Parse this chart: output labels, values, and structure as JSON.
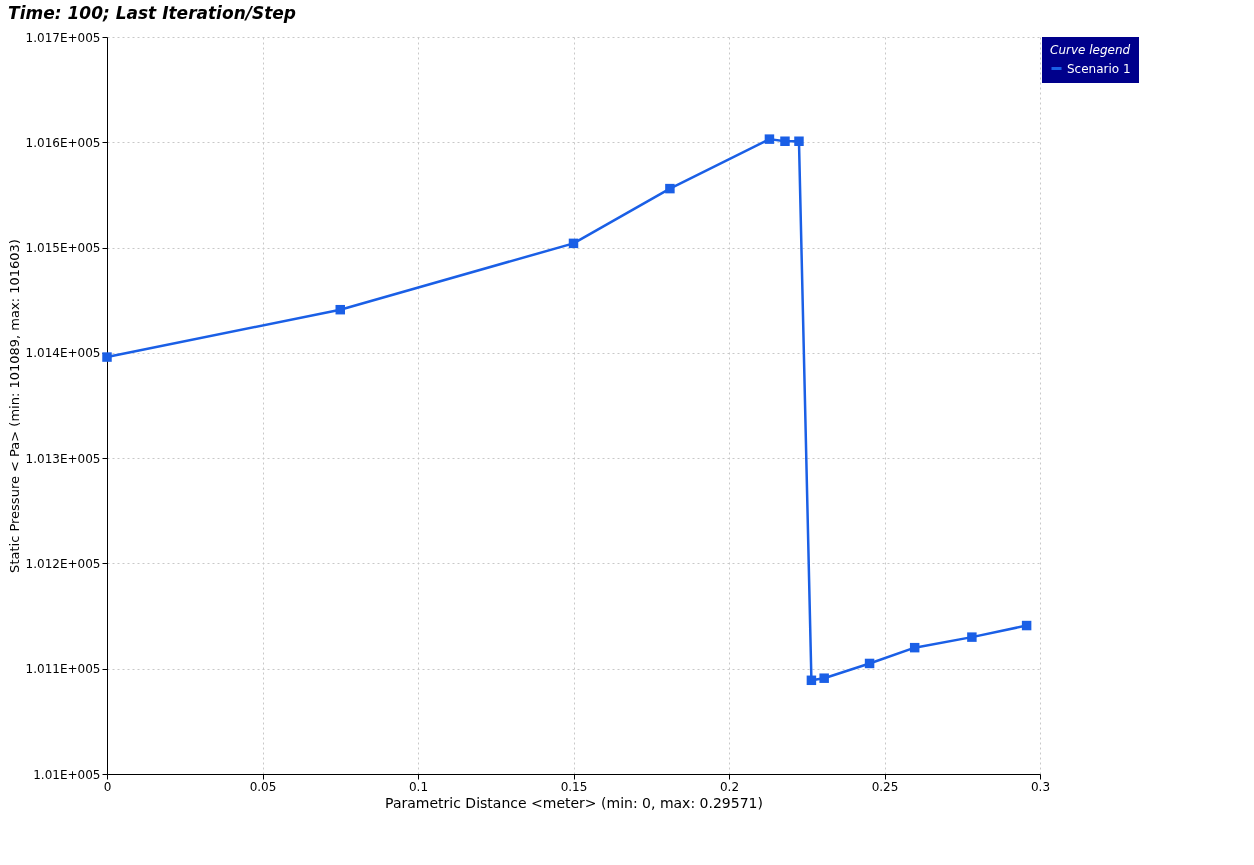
{
  "chart_data": {
    "type": "line",
    "title": "Time: 100; Last Iteration/Step",
    "xlabel": "Parametric Distance <meter> (min: 0, max: 0.29571)",
    "ylabel": "Static Pressure < Pa> (min: 101089, max: 101603)",
    "legend_title": "Curve legend",
    "x": [
      0,
      0.075,
      0.15,
      0.181,
      0.213,
      0.218,
      0.2225,
      0.2265,
      0.2306,
      0.2452,
      0.2597,
      0.2781,
      0.2957
    ],
    "series": [
      {
        "name": "Scenario 1",
        "color": "#1a5fe6",
        "values": [
          101396,
          101441,
          101504,
          101556,
          101603,
          101601,
          101601,
          101089,
          101091,
          101105,
          101120,
          101130,
          101141
        ]
      }
    ],
    "xlim": [
      0,
      0.3
    ],
    "xticks": [
      0,
      0.05,
      0.1,
      0.15,
      0.2,
      0.25,
      0.3
    ],
    "ylim": [
      101000,
      101700
    ],
    "yticks": [
      {
        "value": 101000,
        "label": "1.01E+005"
      },
      {
        "value": 101100,
        "label": "1.011E+005"
      },
      {
        "value": 101200,
        "label": "1.012E+005"
      },
      {
        "value": 101300,
        "label": "1.013E+005"
      },
      {
        "value": 101400,
        "label": "1.014E+005"
      },
      {
        "value": 101500,
        "label": "1.015E+005"
      },
      {
        "value": 101600,
        "label": "1.016E+005"
      },
      {
        "value": 101700,
        "label": "1.017E+005"
      }
    ],
    "grid": true,
    "legend": "top right",
    "marker": "square",
    "line_style": "solid"
  }
}
